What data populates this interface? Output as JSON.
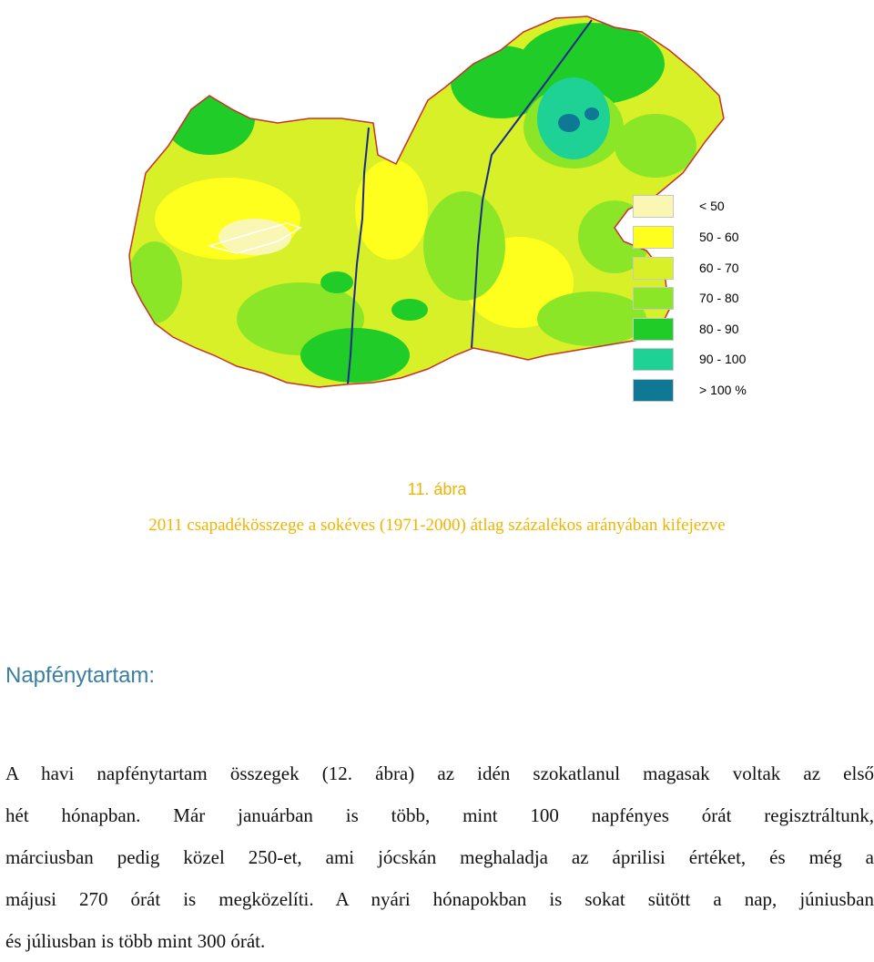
{
  "legend": {
    "items": [
      {
        "label": "< 50",
        "color": "#faf7b4"
      },
      {
        "label": "50 - 60",
        "color": "#ffff1e"
      },
      {
        "label": "60 - 70",
        "color": "#d8f028"
      },
      {
        "label": "70 - 80",
        "color": "#8ce628"
      },
      {
        "label": "80 - 90",
        "color": "#20cc28"
      },
      {
        "label": "90 - 100",
        "color": "#1ed296"
      },
      {
        "label": "> 100 %",
        "color": "#0f7894"
      }
    ]
  },
  "caption": {
    "number": "11. ábra",
    "title": "2011 csapadékösszege a sokéves (1971-2000) átlag százalékos arányában kifejezve"
  },
  "section": {
    "heading": "Napfénytartam:",
    "lines": [
      "A havi napfénytartam összegek (12. ábra) az idén szokatlanul magasak voltak az első",
      "hét hónapban. Már januárban is több, mint 100 napfényes órát regisztráltunk,",
      "márciusban pedig közel 250-et, ami jócskán meghaladja az áprilisi értéket, és még a",
      "májusi 270 órát is megközelíti. A nyári hónapokban is sokat sütött a nap, júniusban",
      "és júliusban is több mint 300 órát."
    ]
  }
}
